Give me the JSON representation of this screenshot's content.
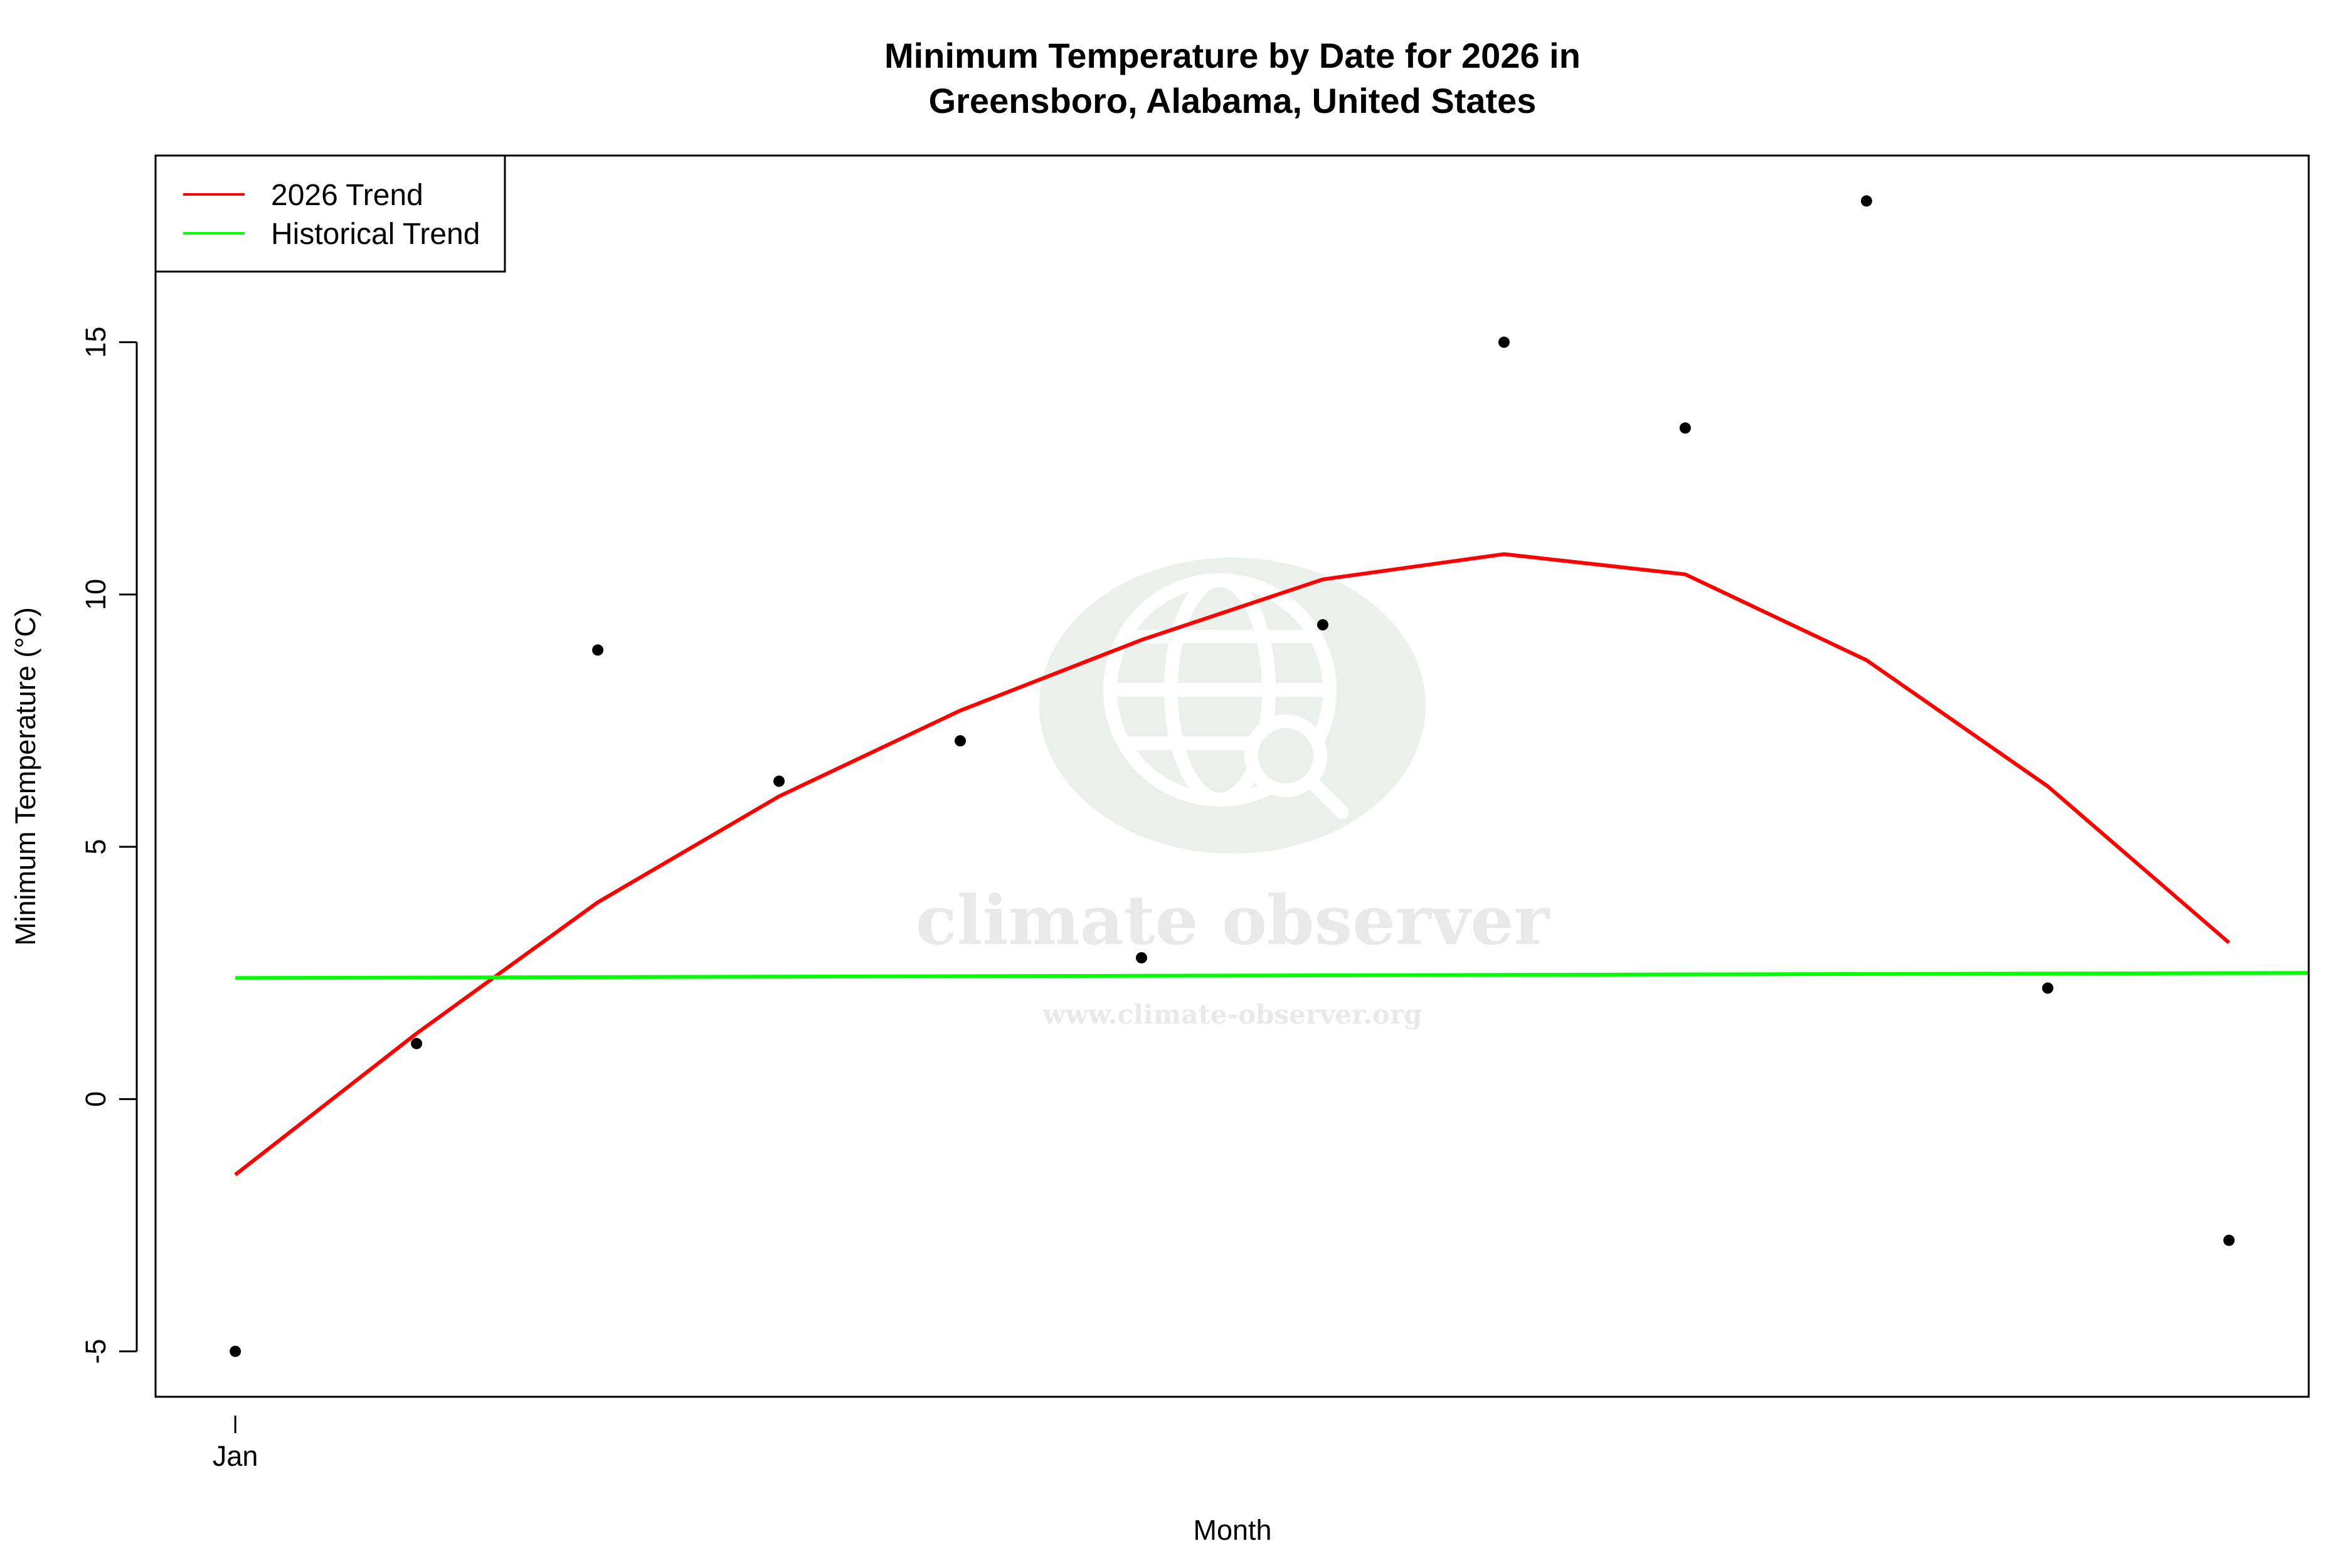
{
  "chart_data": {
    "type": "scatter",
    "title_line1": "Minimum Temperature by Date for 2026 in",
    "title_line2": "Greensboro, Alabama, United States",
    "xlabel": "Month",
    "ylabel": "Minimum Temperature (°C)",
    "x_tick_labels": [
      "Jan"
    ],
    "y_ticks": [
      -5,
      0,
      5,
      10,
      15
    ],
    "xlim": [
      0.56,
      12.44
    ],
    "ylim": [
      -5.9,
      18.7
    ],
    "grid": false,
    "legend_position": "top-left",
    "points": {
      "x": [
        1,
        2,
        3,
        4,
        5,
        6,
        7,
        8,
        9,
        10,
        11,
        12
      ],
      "y": [
        -5.0,
        1.1,
        8.9,
        6.3,
        7.1,
        2.8,
        9.4,
        15.0,
        13.3,
        17.8,
        2.2,
        -2.8
      ],
      "color": "#000000"
    },
    "series": [
      {
        "name": "2026 Trend",
        "color": "#ff0000",
        "x": [
          1,
          2,
          3,
          4,
          5,
          6,
          7,
          8,
          9,
          10,
          11,
          12
        ],
        "y": [
          -1.5,
          1.3,
          3.9,
          6.0,
          7.7,
          9.1,
          10.3,
          10.8,
          10.4,
          8.7,
          6.2,
          3.1
        ]
      },
      {
        "name": "Historical Trend",
        "color": "#00ff00",
        "x": [
          1,
          12.44
        ],
        "y": [
          2.4,
          2.5
        ]
      }
    ]
  },
  "watermark": {
    "name": "climate observer",
    "url": "www.climate-observer.org"
  }
}
